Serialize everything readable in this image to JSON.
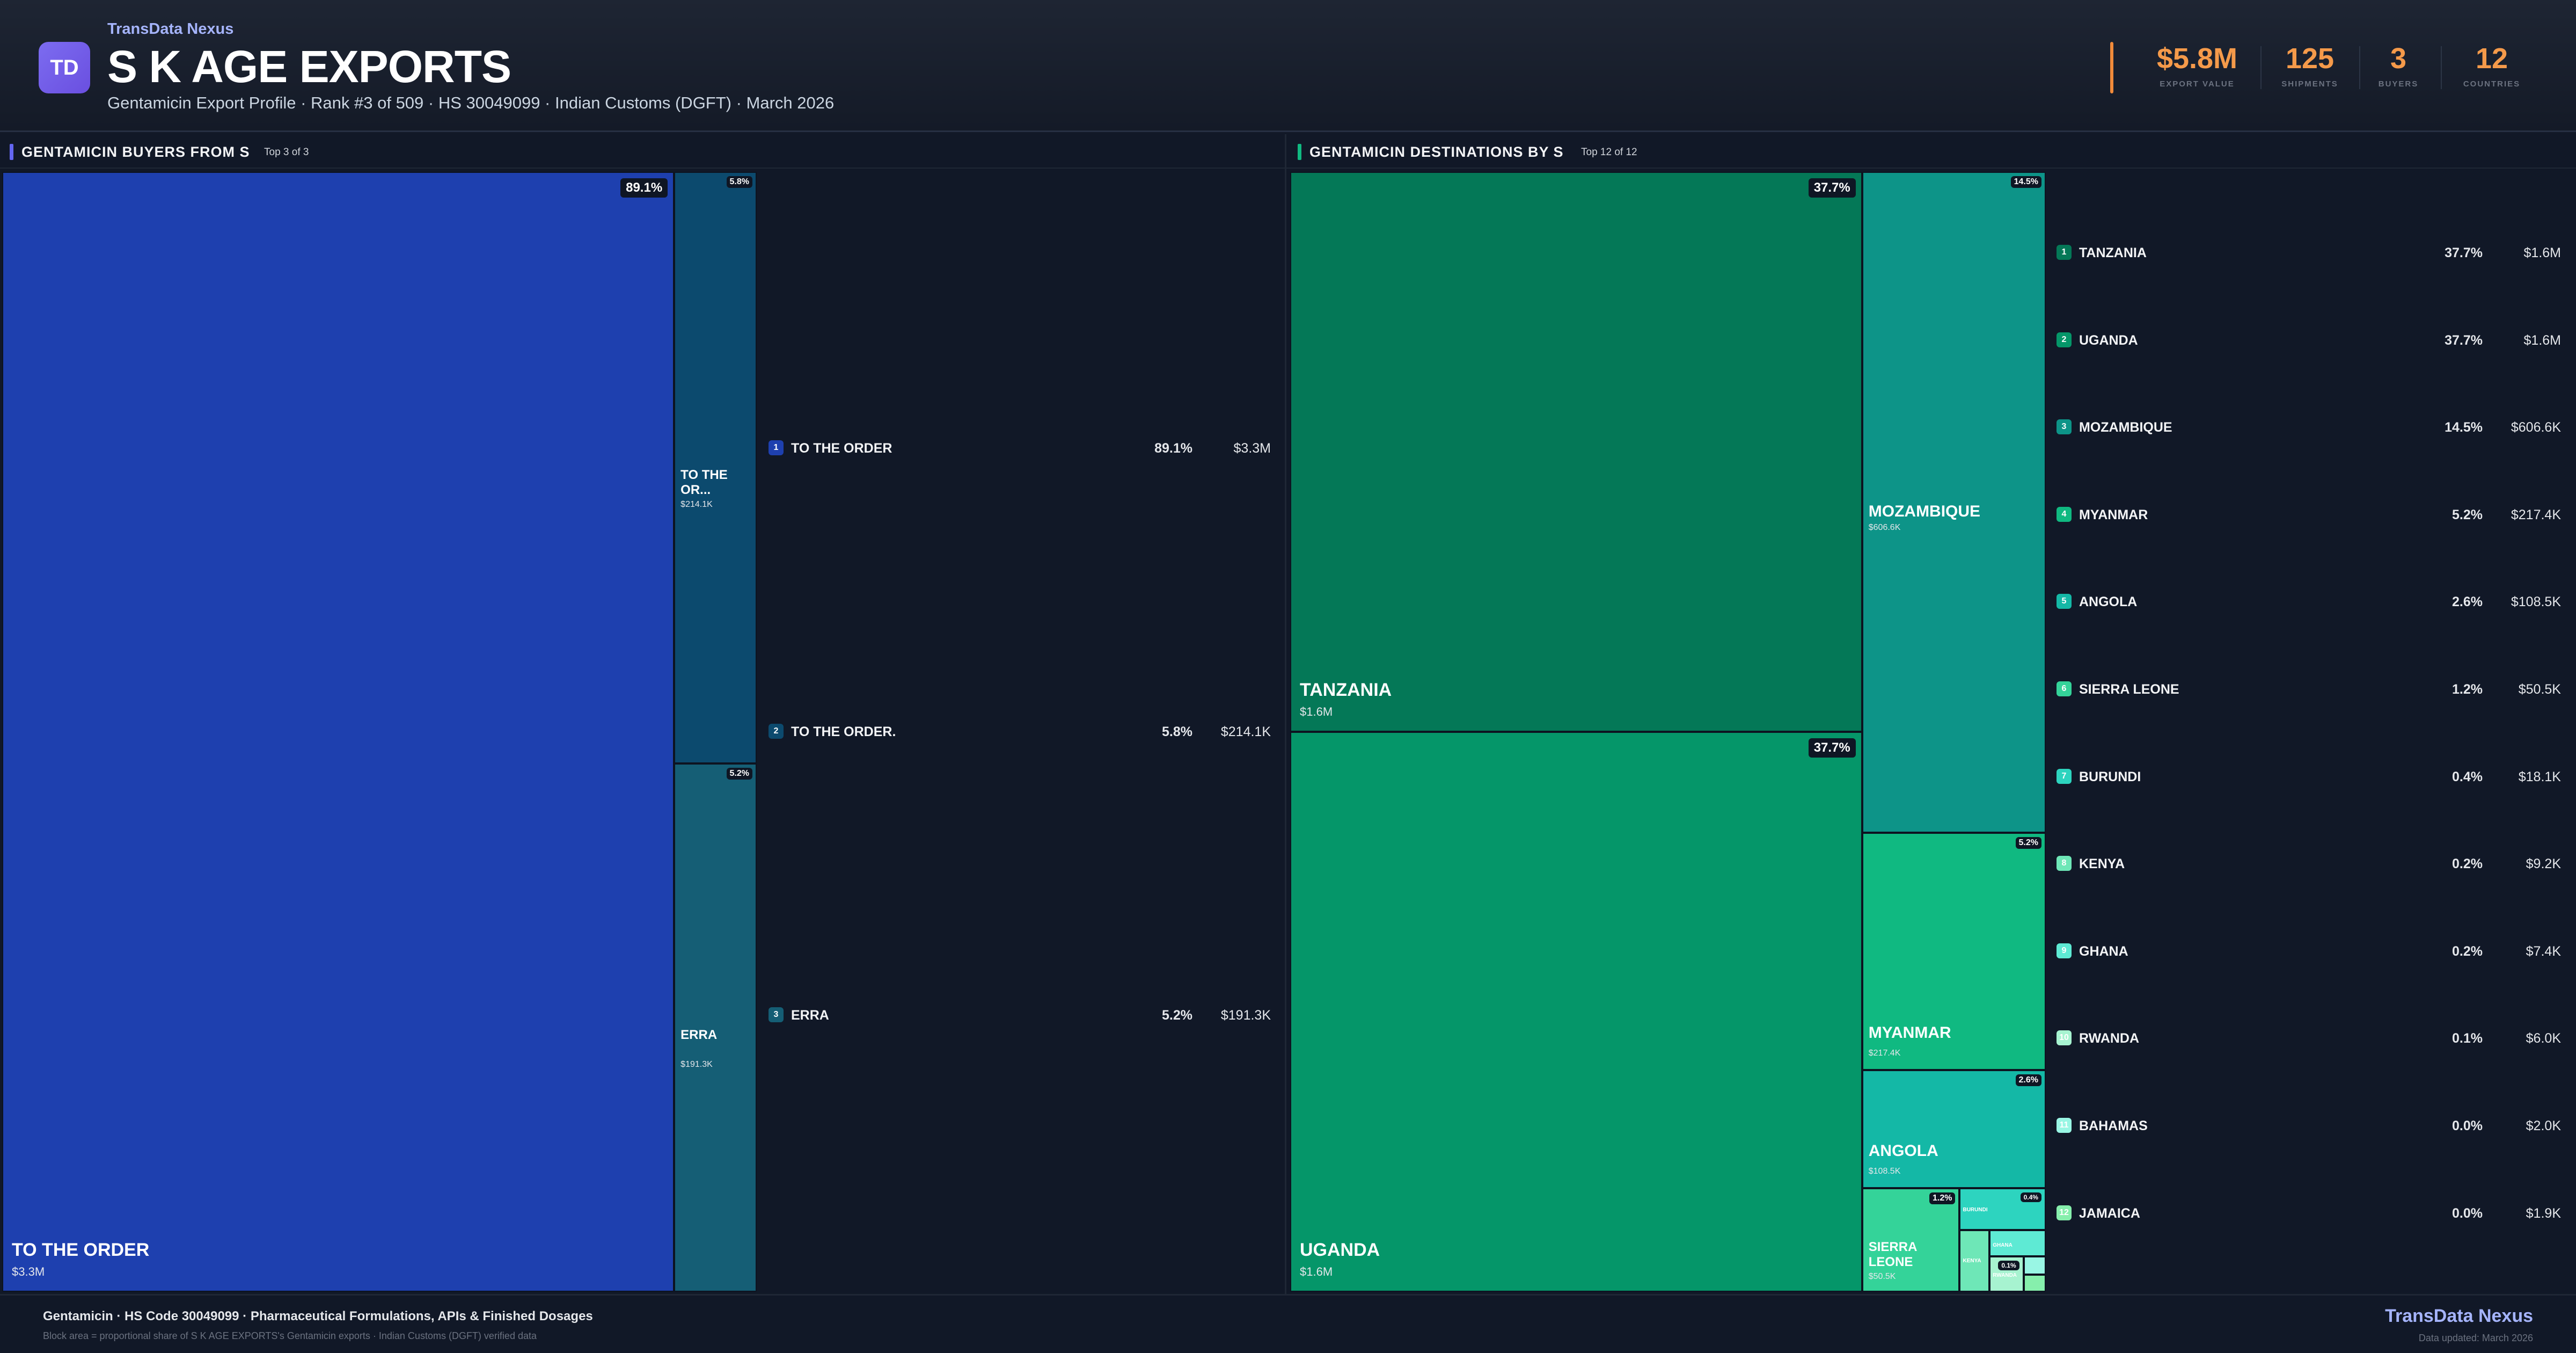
{
  "header": {
    "logo_text": "TD",
    "brand": "TransData Nexus",
    "title": "S K AGE EXPORTS",
    "subtitle": "Gentamicin Export Profile · Rank #3 of 509 · HS 30049099 · Indian Customs (DGFT) · March 2026",
    "kpis": [
      {
        "value": "$5.8M",
        "label": "EXPORT VALUE"
      },
      {
        "value": "125",
        "label": "SHIPMENTS"
      },
      {
        "value": "3",
        "label": "BUYERS"
      },
      {
        "value": "12",
        "label": "COUNTRIES"
      }
    ],
    "accent": "#f59a4a"
  },
  "left_panel": {
    "title": "GENTAMICIN BUYERS FROM S",
    "subtitle": "Top 3 of 3",
    "accent": "#6366f1"
  },
  "right_panel": {
    "title": "GENTAMICIN DESTINATIONS BY S",
    "subtitle": "Top 12 of 12",
    "accent": "#10b981"
  },
  "chart_data": [
    {
      "type": "treemap",
      "title": "GENTAMICIN BUYERS FROM S",
      "items": [
        {
          "rank": "1",
          "name": "TO THE ORDER",
          "tile_name": "TO THE ORDER",
          "pct": "89.1%",
          "value_label": "$3.3M",
          "value": 3.3,
          "color": "#1e40af"
        },
        {
          "rank": "2",
          "name": "TO THE ORDER.",
          "tile_name": "TO THE OR...",
          "pct": "5.8%",
          "value_label": "$214.1K",
          "value": 0.2141,
          "color": "#0c4a6e"
        },
        {
          "rank": "3",
          "name": "ERRA",
          "tile_name": "ERRA",
          "pct": "5.2%",
          "value_label": "$191.3K",
          "value": 0.1913,
          "color": "#155e75"
        }
      ]
    },
    {
      "type": "treemap",
      "title": "GENTAMICIN DESTINATIONS BY S",
      "items": [
        {
          "rank": "1",
          "name": "TANZANIA",
          "pct": "37.7%",
          "value_label": "$1.6M",
          "value": 1.6,
          "color": "#047857"
        },
        {
          "rank": "2",
          "name": "UGANDA",
          "pct": "37.7%",
          "value_label": "$1.6M",
          "value": 1.6,
          "color": "#059669"
        },
        {
          "rank": "3",
          "name": "MOZAMBIQUE",
          "pct": "14.5%",
          "value_label": "$606.6K",
          "value": 0.6066,
          "color": "#0d9488"
        },
        {
          "rank": "4",
          "name": "MYANMAR",
          "pct": "5.2%",
          "value_label": "$217.4K",
          "value": 0.2174,
          "color": "#10b981"
        },
        {
          "rank": "5",
          "name": "ANGOLA",
          "pct": "2.6%",
          "value_label": "$108.5K",
          "value": 0.1085,
          "color": "#14b8a6"
        },
        {
          "rank": "6",
          "name": "SIERRA LEONE",
          "pct": "1.2%",
          "value_label": "$50.5K",
          "value": 0.0505,
          "color": "#34d399"
        },
        {
          "rank": "7",
          "name": "BURUNDI",
          "pct": "0.4%",
          "value_label": "$18.1K",
          "value": 0.0181,
          "color": "#2dd4bf"
        },
        {
          "rank": "8",
          "name": "KENYA",
          "pct": "0.2%",
          "value_label": "$9.2K",
          "value": 0.0092,
          "color": "#6ee7b7"
        },
        {
          "rank": "9",
          "name": "GHANA",
          "pct": "0.2%",
          "value_label": "$7.4K",
          "value": 0.0074,
          "color": "#5eead4"
        },
        {
          "rank": "10",
          "name": "RWANDA",
          "pct": "0.1%",
          "value_label": "$6.0K",
          "value": 0.006,
          "color": "#a7f3d0"
        },
        {
          "rank": "11",
          "name": "BAHAMAS",
          "pct": "0.0%",
          "value_label": "$2.0K",
          "value": 0.002,
          "color": "#99f6e4"
        },
        {
          "rank": "12",
          "name": "JAMAICA",
          "pct": "0.0%",
          "value_label": "$1.9K",
          "value": 0.0019,
          "color": "#86efac"
        }
      ]
    }
  ],
  "footer": {
    "line1": "Gentamicin · HS Code 30049099 · Pharmaceutical Formulations, APIs & Finished Dosages",
    "line2": "Block area = proportional share of S K AGE EXPORTS's Gentamicin exports · Indian Customs (DGFT) verified data",
    "brand": "TransData Nexus",
    "updated": "Data updated: March 2026"
  }
}
